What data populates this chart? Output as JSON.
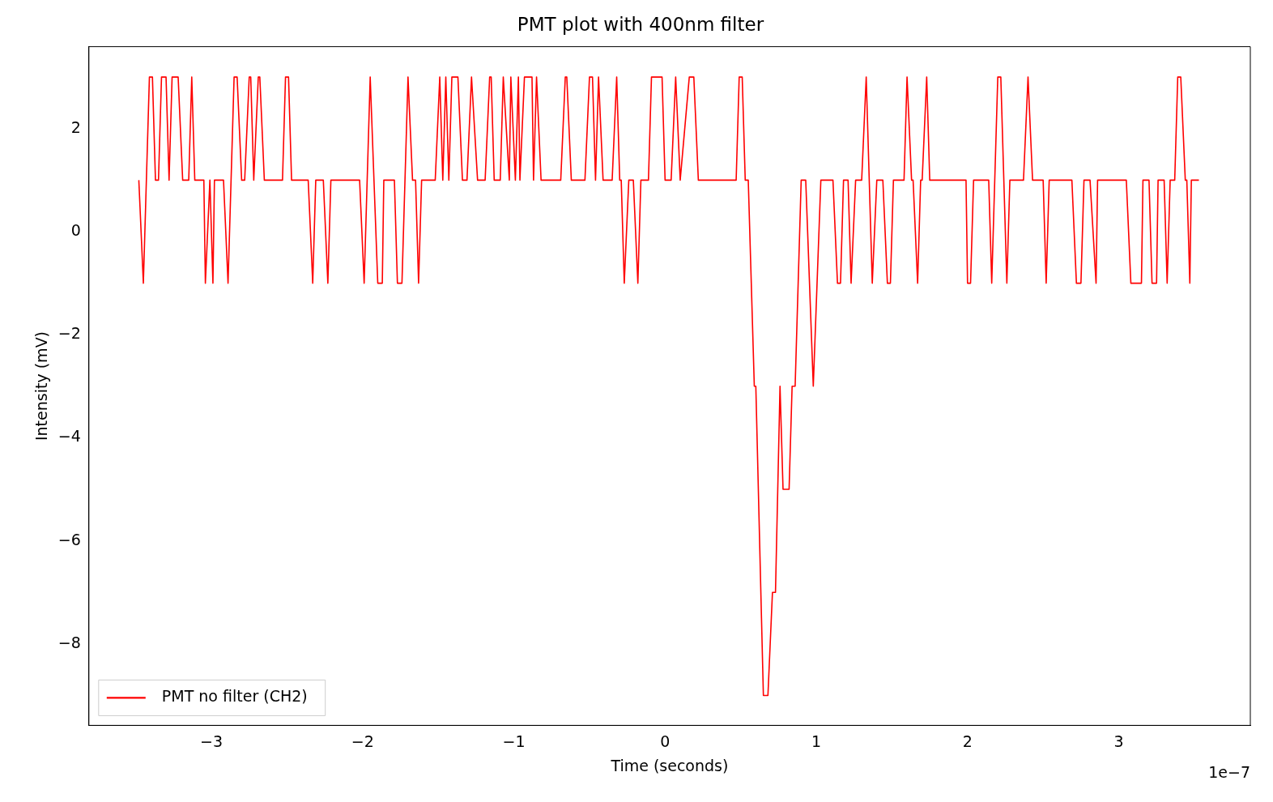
{
  "chart_data": {
    "type": "line",
    "title": "PMT plot with 400nm filter",
    "xlabel": "Time (seconds)",
    "ylabel": "Intensity (mV)",
    "annotations": [
      "1e−7"
    ],
    "xlim": [
      -3.81,
      3.87
    ],
    "xticks": [
      -3,
      -2,
      -1,
      0,
      1,
      2,
      3
    ],
    "ylim": [
      -9.58,
      3.59
    ],
    "yticks": [
      -8,
      -6,
      -4,
      -2,
      0,
      2
    ],
    "grid": false,
    "legend": "bottom left",
    "marker": "none",
    "line_style": "solid",
    "series": [
      {
        "name": "PMT no filter (CH2)",
        "color": "#ff0000",
        "x": [
          -3.48,
          -3.45,
          -3.41,
          -3.39,
          -3.37,
          -3.35,
          -3.33,
          -3.3,
          -3.28,
          -3.26,
          -3.22,
          -3.19,
          -3.15,
          -3.13,
          -3.11,
          -3.05,
          -3.04,
          -3.01,
          -2.99,
          -2.98,
          -2.92,
          -2.89,
          -2.85,
          -2.83,
          -2.8,
          -2.78,
          -2.75,
          -2.74,
          -2.72,
          -2.69,
          -2.68,
          -2.65,
          -2.53,
          -2.51,
          -2.49,
          -2.47,
          -2.36,
          -2.33,
          -2.31,
          -2.26,
          -2.23,
          -2.21,
          -2.02,
          -1.99,
          -1.95,
          -1.9,
          -1.87,
          -1.86,
          -1.79,
          -1.77,
          -1.74,
          -1.72,
          -1.7,
          -1.67,
          -1.65,
          -1.63,
          -1.61,
          -1.52,
          -1.49,
          -1.47,
          -1.45,
          -1.43,
          -1.41,
          -1.37,
          -1.34,
          -1.31,
          -1.28,
          -1.24,
          -1.19,
          -1.16,
          -1.15,
          -1.13,
          -1.09,
          -1.07,
          -1.03,
          -1.02,
          -0.99,
          -0.97,
          -0.96,
          -0.93,
          -0.88,
          -0.87,
          -0.85,
          -0.82,
          -0.69,
          -0.66,
          -0.65,
          -0.62,
          -0.58,
          -0.53,
          -0.5,
          -0.48,
          -0.46,
          -0.44,
          -0.41,
          -0.35,
          -0.32,
          -0.3,
          -0.29,
          -0.27,
          -0.24,
          -0.21,
          -0.18,
          -0.16,
          -0.11,
          -0.09,
          -0.02,
          0,
          0.04,
          0.07,
          0.1,
          0.16,
          0.19,
          0.22,
          0.47,
          0.49,
          0.51,
          0.53,
          0.55,
          0.59,
          0.6,
          0.65,
          0.68,
          0.71,
          0.73,
          0.76,
          0.78,
          0.82,
          0.84,
          0.86,
          0.9,
          0.93,
          0.98,
          1.03,
          1.11,
          1.14,
          1.16,
          1.18,
          1.21,
          1.23,
          1.26,
          1.3,
          1.33,
          1.37,
          1.4,
          1.44,
          1.47,
          1.49,
          1.51,
          1.58,
          1.6,
          1.63,
          1.64,
          1.67,
          1.69,
          1.7,
          1.73,
          1.75,
          1.99,
          2.0,
          2.02,
          2.04,
          2.14,
          2.16,
          2.2,
          2.22,
          2.26,
          2.28,
          2.37,
          2.4,
          2.43,
          2.5,
          2.52,
          2.54,
          2.69,
          2.72,
          2.75,
          2.77,
          2.81,
          2.85,
          2.86,
          3.05,
          3.08,
          3.15,
          3.16,
          3.2,
          3.22,
          3.25,
          3.26,
          3.3,
          3.32,
          3.34,
          3.37,
          3.39,
          3.41,
          3.44,
          3.45,
          3.47,
          3.48,
          3.53
        ],
        "values": [
          1,
          -1,
          3,
          3,
          1,
          1,
          3,
          3,
          1,
          3,
          3,
          1,
          1,
          3,
          1,
          1,
          -1,
          1,
          -1,
          1,
          1,
          -1,
          3,
          3,
          1,
          1,
          3,
          3,
          1,
          3,
          3,
          1,
          1,
          3,
          3,
          1,
          1,
          -1,
          1,
          1,
          -1,
          1,
          1,
          -1,
          3,
          -1,
          -1,
          1,
          1,
          -1,
          -1,
          1,
          3,
          1,
          1,
          -1,
          1,
          1,
          3,
          1,
          3,
          1,
          3,
          3,
          1,
          1,
          3,
          1,
          1,
          3,
          3,
          1,
          1,
          3,
          1,
          3,
          1,
          3,
          1,
          3,
          3,
          1,
          3,
          1,
          1,
          3,
          3,
          1,
          1,
          1,
          3,
          3,
          1,
          3,
          1,
          1,
          3,
          1,
          1,
          -1,
          1,
          1,
          -1,
          1,
          1,
          3,
          3,
          1,
          1,
          3,
          1,
          3,
          3,
          1,
          1,
          3,
          3,
          1,
          1,
          -3,
          -3,
          -9,
          -9,
          -7,
          -7,
          -3,
          -5,
          -5,
          -3,
          -3,
          1,
          1,
          -3,
          1,
          1,
          -1,
          -1,
          1,
          1,
          -1,
          1,
          1,
          3,
          -1,
          1,
          1,
          -1,
          -1,
          1,
          1,
          3,
          1,
          1,
          -1,
          1,
          1,
          3,
          1,
          1,
          -1,
          -1,
          1,
          1,
          -1,
          3,
          3,
          -1,
          1,
          1,
          3,
          1,
          1,
          -1,
          1,
          1,
          -1,
          -1,
          1,
          1,
          -1,
          1,
          1,
          -1,
          -1,
          1,
          1,
          -1,
          -1,
          1,
          1,
          -1,
          1,
          1,
          3,
          3,
          1,
          1,
          -1,
          1,
          1
        ]
      }
    ]
  }
}
